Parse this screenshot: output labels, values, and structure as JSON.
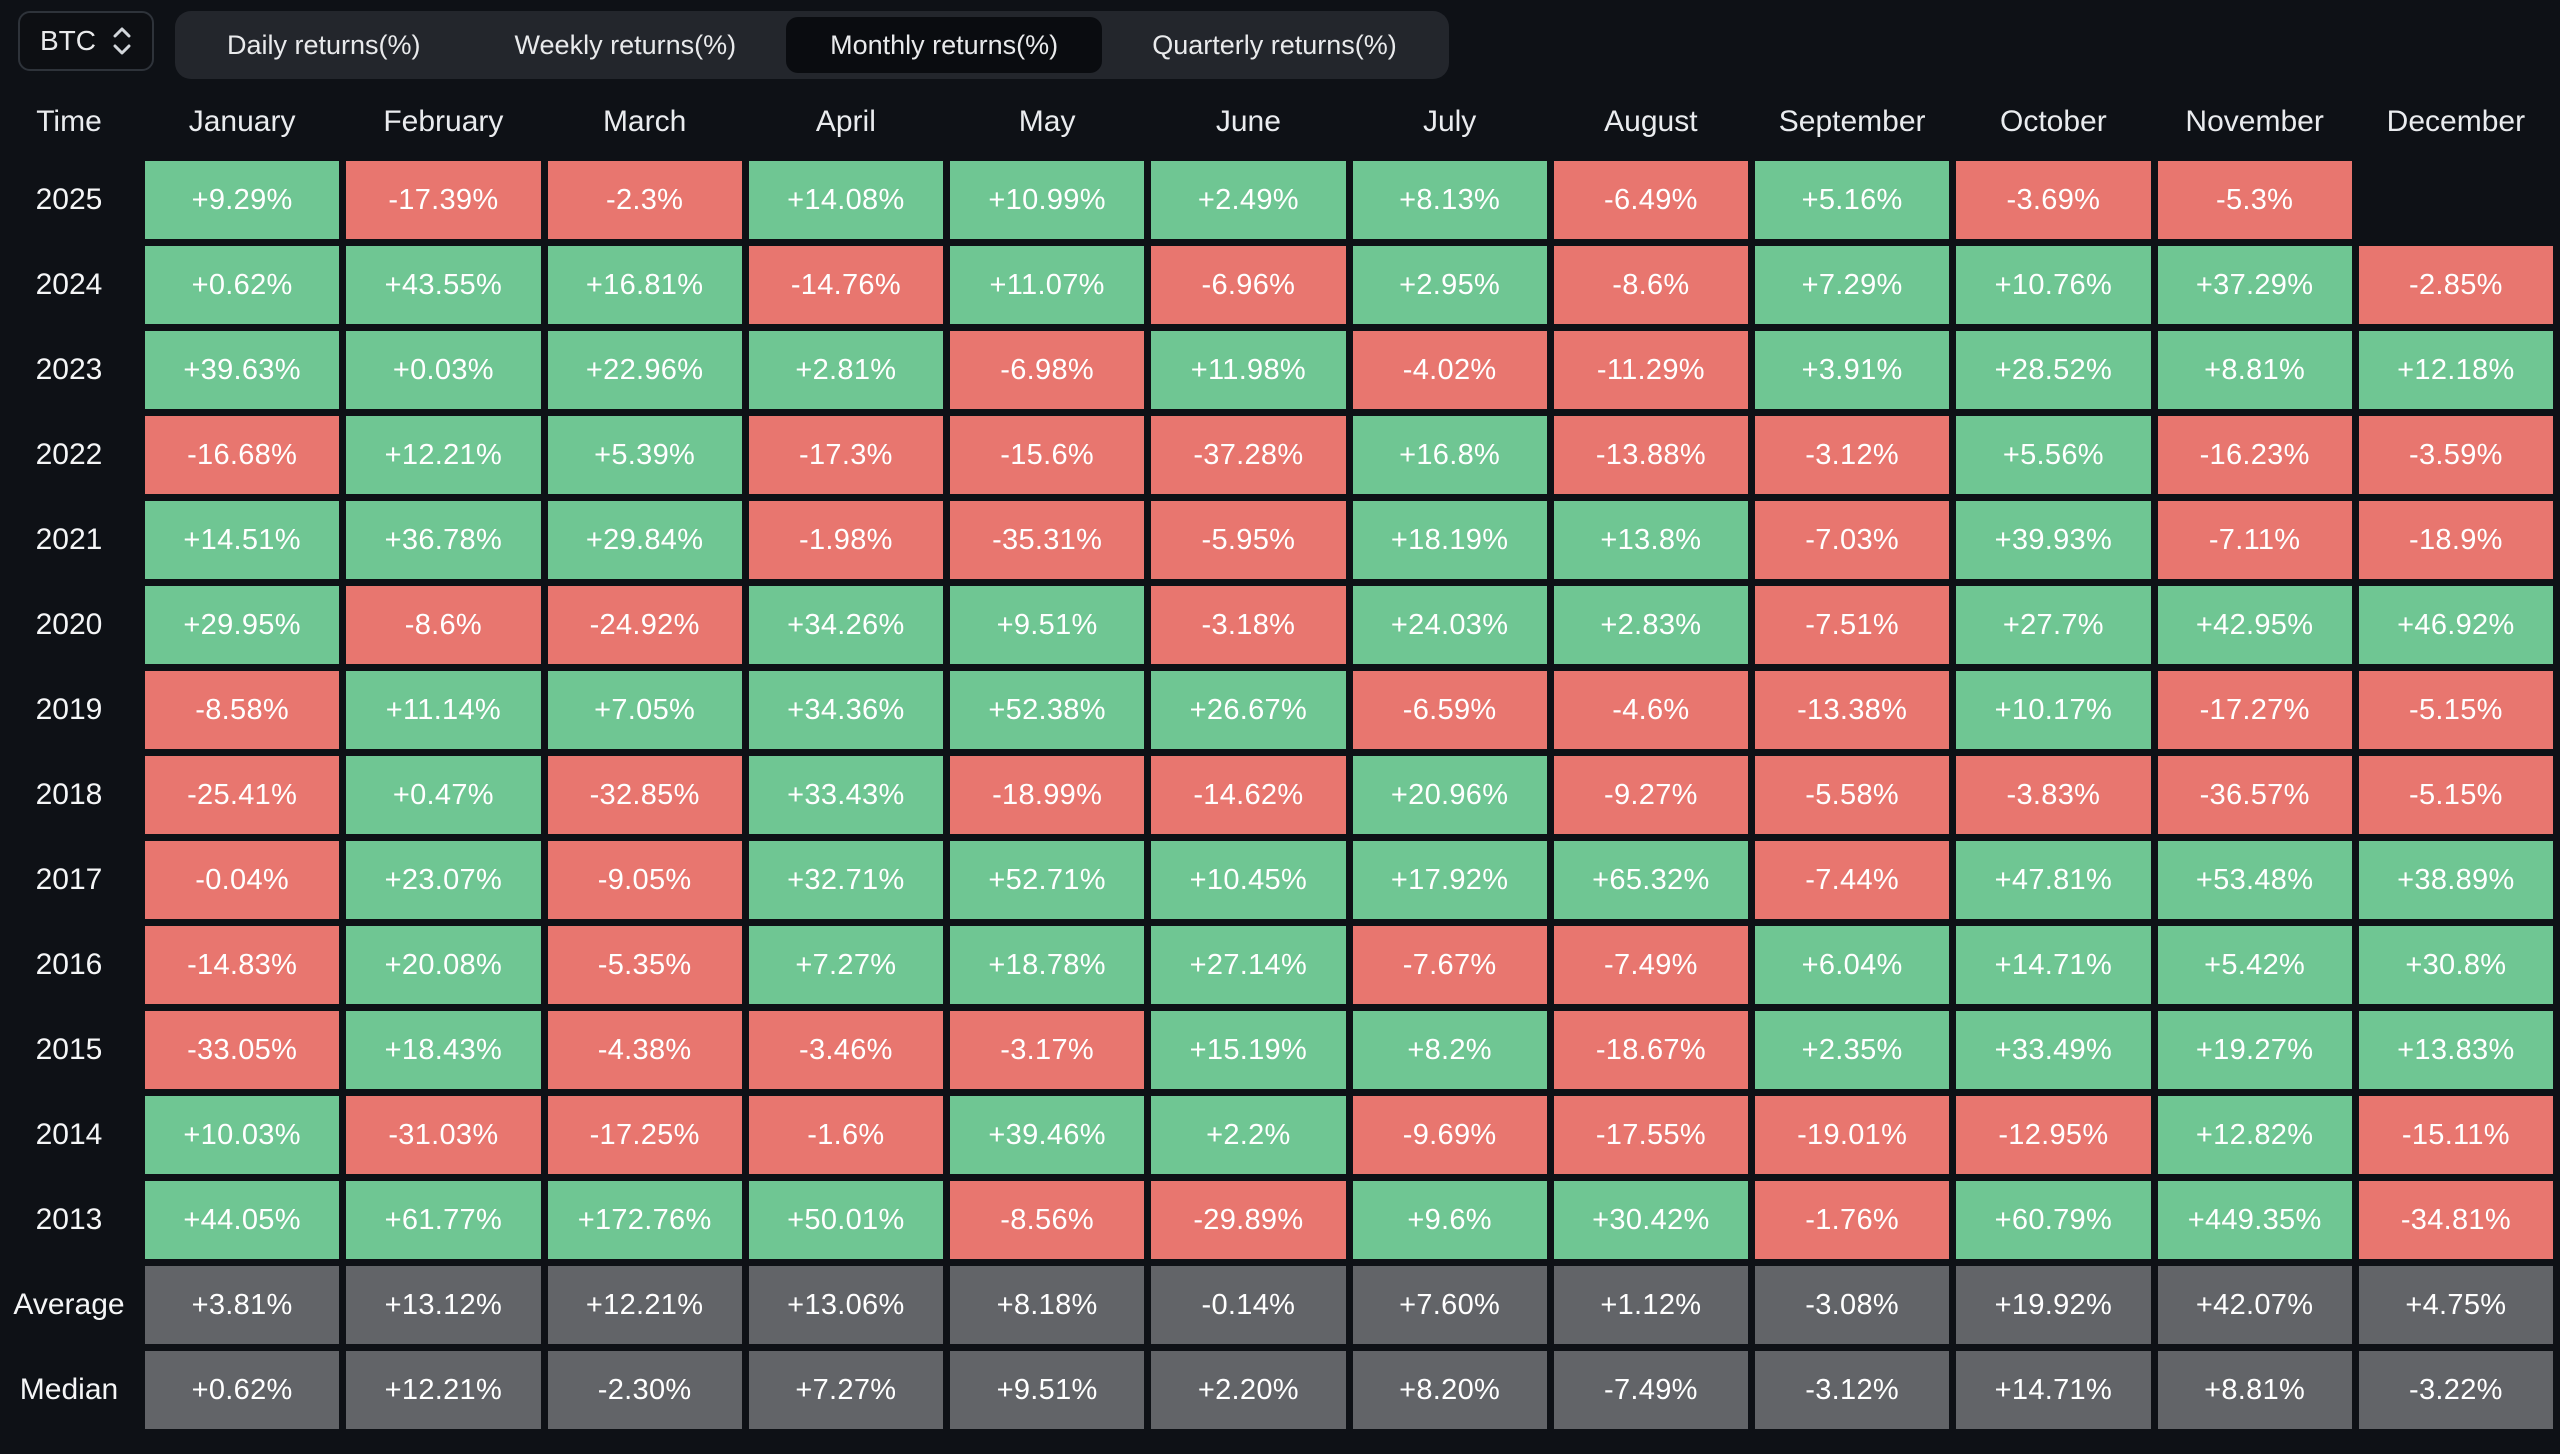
{
  "controls": {
    "asset_label": "BTC",
    "tabs": [
      "Daily returns(%)",
      "Weekly returns(%)",
      "Monthly returns(%)",
      "Quarterly returns(%)"
    ],
    "active_tab": "Monthly returns(%)"
  },
  "colors": {
    "positive": "#6fc693",
    "negative": "#e8766f",
    "summary": "#626468",
    "background": "#0e1116"
  },
  "table": {
    "time_header": "Time",
    "months": [
      "January",
      "February",
      "March",
      "April",
      "May",
      "June",
      "July",
      "August",
      "September",
      "October",
      "November",
      "December"
    ],
    "rows": [
      {
        "label": "2025",
        "kind": "year",
        "values": [
          "+9.29%",
          "-17.39%",
          "-2.3%",
          "+14.08%",
          "+10.99%",
          "+2.49%",
          "+8.13%",
          "-6.49%",
          "+5.16%",
          "-3.69%",
          "-5.3%",
          null
        ]
      },
      {
        "label": "2024",
        "kind": "year",
        "values": [
          "+0.62%",
          "+43.55%",
          "+16.81%",
          "-14.76%",
          "+11.07%",
          "-6.96%",
          "+2.95%",
          "-8.6%",
          "+7.29%",
          "+10.76%",
          "+37.29%",
          "-2.85%"
        ]
      },
      {
        "label": "2023",
        "kind": "year",
        "values": [
          "+39.63%",
          "+0.03%",
          "+22.96%",
          "+2.81%",
          "-6.98%",
          "+11.98%",
          "-4.02%",
          "-11.29%",
          "+3.91%",
          "+28.52%",
          "+8.81%",
          "+12.18%"
        ]
      },
      {
        "label": "2022",
        "kind": "year",
        "values": [
          "-16.68%",
          "+12.21%",
          "+5.39%",
          "-17.3%",
          "-15.6%",
          "-37.28%",
          "+16.8%",
          "-13.88%",
          "-3.12%",
          "+5.56%",
          "-16.23%",
          "-3.59%"
        ]
      },
      {
        "label": "2021",
        "kind": "year",
        "values": [
          "+14.51%",
          "+36.78%",
          "+29.84%",
          "-1.98%",
          "-35.31%",
          "-5.95%",
          "+18.19%",
          "+13.8%",
          "-7.03%",
          "+39.93%",
          "-7.11%",
          "-18.9%"
        ]
      },
      {
        "label": "2020",
        "kind": "year",
        "values": [
          "+29.95%",
          "-8.6%",
          "-24.92%",
          "+34.26%",
          "+9.51%",
          "-3.18%",
          "+24.03%",
          "+2.83%",
          "-7.51%",
          "+27.7%",
          "+42.95%",
          "+46.92%"
        ]
      },
      {
        "label": "2019",
        "kind": "year",
        "values": [
          "-8.58%",
          "+11.14%",
          "+7.05%",
          "+34.36%",
          "+52.38%",
          "+26.67%",
          "-6.59%",
          "-4.6%",
          "-13.38%",
          "+10.17%",
          "-17.27%",
          "-5.15%"
        ]
      },
      {
        "label": "2018",
        "kind": "year",
        "values": [
          "-25.41%",
          "+0.47%",
          "-32.85%",
          "+33.43%",
          "-18.99%",
          "-14.62%",
          "+20.96%",
          "-9.27%",
          "-5.58%",
          "-3.83%",
          "-36.57%",
          "-5.15%"
        ]
      },
      {
        "label": "2017",
        "kind": "year",
        "values": [
          "-0.04%",
          "+23.07%",
          "-9.05%",
          "+32.71%",
          "+52.71%",
          "+10.45%",
          "+17.92%",
          "+65.32%",
          "-7.44%",
          "+47.81%",
          "+53.48%",
          "+38.89%"
        ]
      },
      {
        "label": "2016",
        "kind": "year",
        "values": [
          "-14.83%",
          "+20.08%",
          "-5.35%",
          "+7.27%",
          "+18.78%",
          "+27.14%",
          "-7.67%",
          "-7.49%",
          "+6.04%",
          "+14.71%",
          "+5.42%",
          "+30.8%"
        ]
      },
      {
        "label": "2015",
        "kind": "year",
        "values": [
          "-33.05%",
          "+18.43%",
          "-4.38%",
          "-3.46%",
          "-3.17%",
          "+15.19%",
          "+8.2%",
          "-18.67%",
          "+2.35%",
          "+33.49%",
          "+19.27%",
          "+13.83%"
        ]
      },
      {
        "label": "2014",
        "kind": "year",
        "values": [
          "+10.03%",
          "-31.03%",
          "-17.25%",
          "-1.6%",
          "+39.46%",
          "+2.2%",
          "-9.69%",
          "-17.55%",
          "-19.01%",
          "-12.95%",
          "+12.82%",
          "-15.11%"
        ]
      },
      {
        "label": "2013",
        "kind": "year",
        "values": [
          "+44.05%",
          "+61.77%",
          "+172.76%",
          "+50.01%",
          "-8.56%",
          "-29.89%",
          "+9.6%",
          "+30.42%",
          "-1.76%",
          "+60.79%",
          "+449.35%",
          "-34.81%"
        ]
      },
      {
        "label": "Average",
        "kind": "summary",
        "values": [
          "+3.81%",
          "+13.12%",
          "+12.21%",
          "+13.06%",
          "+8.18%",
          "-0.14%",
          "+7.60%",
          "+1.12%",
          "-3.08%",
          "+19.92%",
          "+42.07%",
          "+4.75%"
        ]
      },
      {
        "label": "Median",
        "kind": "summary",
        "values": [
          "+0.62%",
          "+12.21%",
          "-2.30%",
          "+7.27%",
          "+9.51%",
          "+2.20%",
          "+8.20%",
          "-7.49%",
          "-3.12%",
          "+14.71%",
          "+8.81%",
          "-3.22%"
        ]
      }
    ]
  }
}
